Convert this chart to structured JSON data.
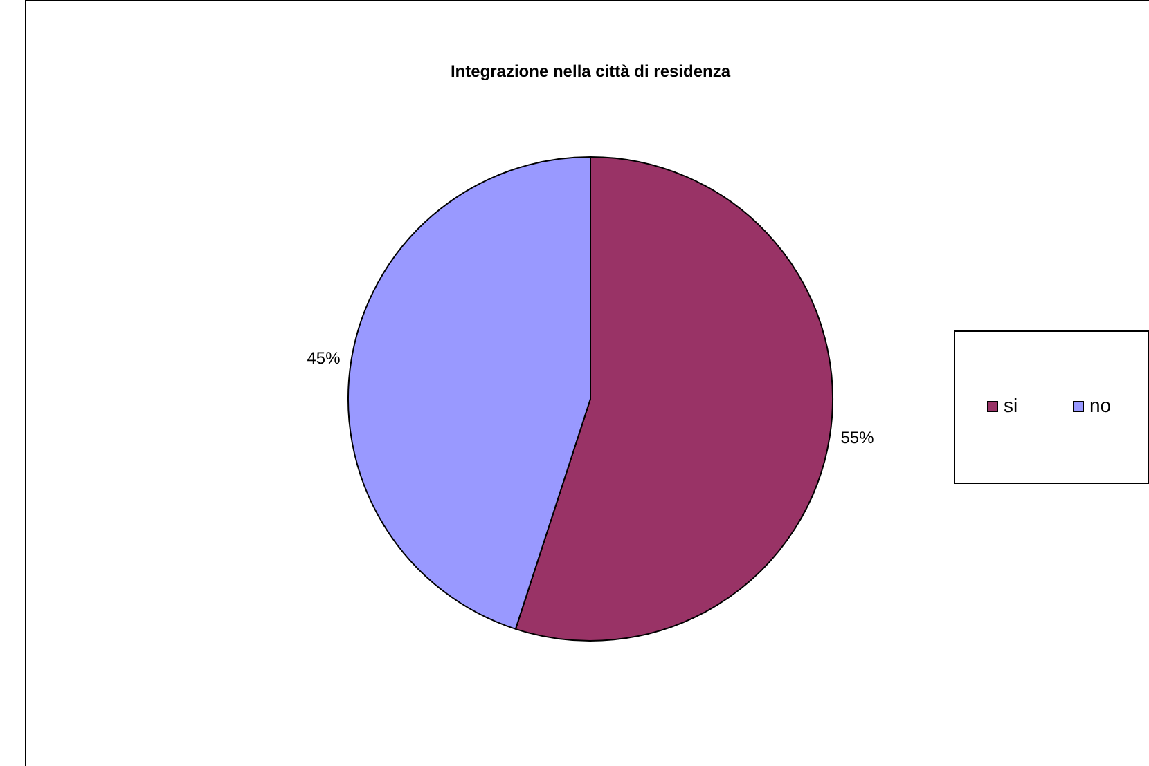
{
  "chart_data": {
    "type": "pie",
    "title": "Integrazione nella città di residenza",
    "categories": [
      "si",
      "no"
    ],
    "values": [
      55,
      45
    ],
    "colors": [
      "#993366",
      "#9999ff"
    ],
    "value_labels": [
      "55%",
      "45%"
    ],
    "legend": "right"
  }
}
